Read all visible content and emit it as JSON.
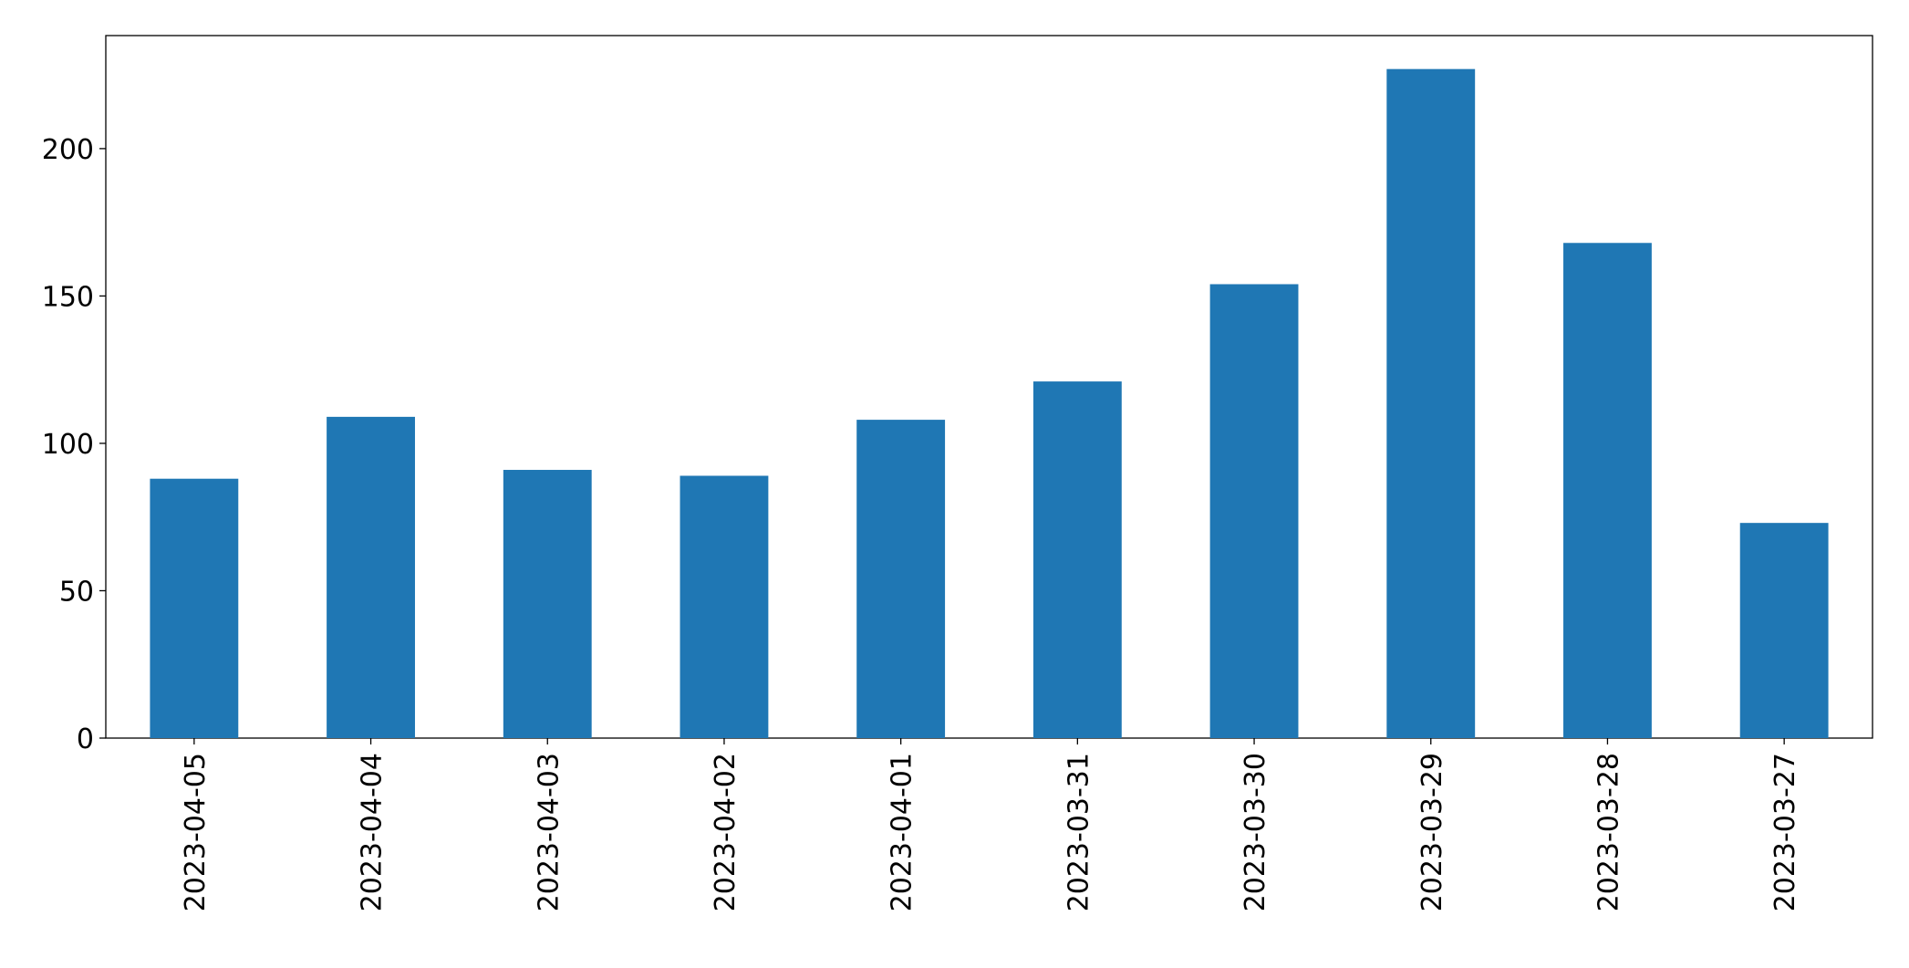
{
  "chart_data": {
    "type": "bar",
    "categories": [
      "2023-04-05",
      "2023-04-04",
      "2023-04-03",
      "2023-04-02",
      "2023-04-01",
      "2023-03-31",
      "2023-03-30",
      "2023-03-29",
      "2023-03-28",
      "2023-03-27"
    ],
    "values": [
      88,
      109,
      91,
      89,
      108,
      121,
      154,
      227,
      168,
      73
    ],
    "color": "#1f77b4",
    "ylim": [
      0,
      238.35
    ],
    "yticks": [
      0,
      50,
      100,
      150,
      200
    ],
    "grid": false
  }
}
